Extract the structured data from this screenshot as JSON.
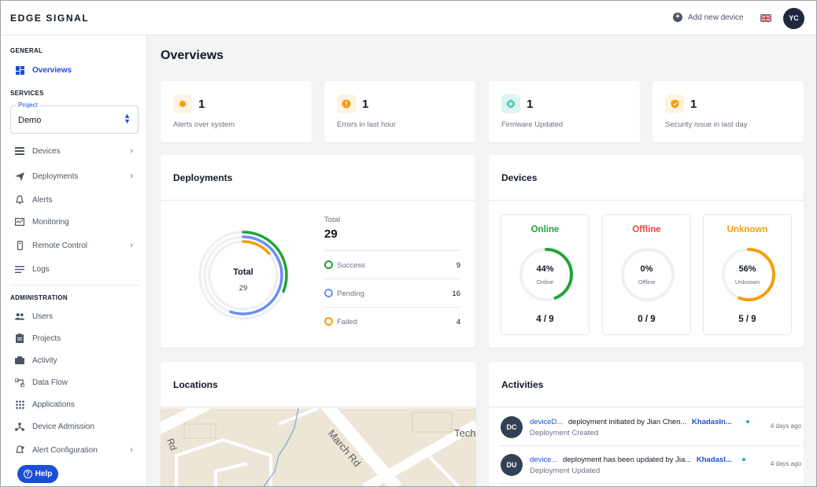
{
  "app": {
    "logo": "EDGE SIGNAL"
  },
  "header": {
    "add_device_label": "Add new device",
    "user_initials": "YC"
  },
  "sidebar": {
    "general_title": "GENERAL",
    "overviews": "Overviews",
    "services_title": "SERVICES",
    "project_label": "Project",
    "project_value": "Demo",
    "services": [
      {
        "label": "Devices"
      },
      {
        "label": "Deployments"
      },
      {
        "label": "Alerts"
      },
      {
        "label": "Monitoring"
      },
      {
        "label": "Remote Control"
      },
      {
        "label": "Logs"
      }
    ],
    "admin_title": "ADMINISTRATION",
    "admin": [
      {
        "label": "Users"
      },
      {
        "label": "Projects"
      },
      {
        "label": "Activity"
      },
      {
        "label": "Data Flow"
      },
      {
        "label": "Applications"
      },
      {
        "label": "Device Admission"
      },
      {
        "label": "Alert Configuration"
      }
    ],
    "help_label": "Help"
  },
  "page": {
    "title": "Overviews"
  },
  "stats": [
    {
      "value": "1",
      "label": "Alerts over system",
      "color": "#f59e0b"
    },
    {
      "value": "1",
      "label": "Errors in last hour",
      "color": "#f59e0b"
    },
    {
      "value": "1",
      "label": "Firmware Updated",
      "color": "#14b8a6"
    },
    {
      "value": "1",
      "label": "Security issue in last day",
      "color": "#f59e0b"
    }
  ],
  "deployments": {
    "title": "Deployments",
    "center_label": "Total",
    "center_value": "29",
    "total_label": "Total",
    "total_value": "29",
    "rows": [
      {
        "name": "Success",
        "value": "9",
        "color": "#22a33a"
      },
      {
        "name": "Pending",
        "value": "16",
        "color": "#6b8ef0"
      },
      {
        "name": "Failed",
        "value": "4",
        "color": "#f59e0b"
      }
    ]
  },
  "devices": {
    "title": "Devices",
    "boxes": [
      {
        "name": "Online",
        "pct": "44%",
        "sub": "Online",
        "ratio": "4 / 9",
        "fraction": 0.44,
        "color": "#22a33a"
      },
      {
        "name": "Offline",
        "pct": "0%",
        "sub": "Offline",
        "ratio": "0 / 9",
        "fraction": 0,
        "color": "#ef4444"
      },
      {
        "name": "Unknown",
        "pct": "56%",
        "sub": "Unknown",
        "ratio": "5 / 9",
        "fraction": 0.56,
        "color": "#f59e0b"
      }
    ]
  },
  "locations": {
    "title": "Locations",
    "map_labels": [
      "Rd",
      "March Rd",
      "Tech"
    ]
  },
  "activities": {
    "title": "Activities",
    "items": [
      {
        "initials": "DC",
        "device": "deviceD...",
        "text": "deployment initiated by Jian Chen...",
        "target": "KhadasIn...",
        "desc": "Deployment Created",
        "time": "4 days ago"
      },
      {
        "initials": "DU",
        "device": "device...",
        "text": "deployment has been updated by Jia...",
        "target": "KhadasI...",
        "desc": "Deployment Updated",
        "time": "4 days ago"
      }
    ]
  }
}
